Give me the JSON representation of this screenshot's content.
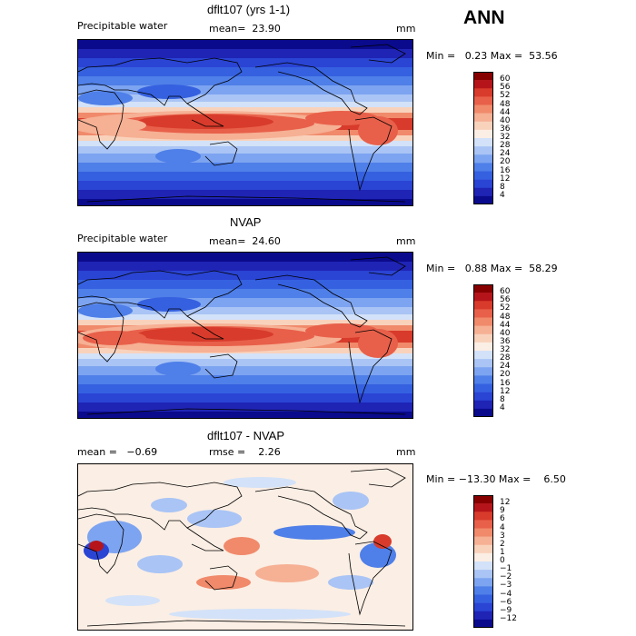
{
  "season": "ANN",
  "colors": {
    "land": "#000000",
    "background": "#ffffff"
  },
  "panels": [
    {
      "title": "dflt107 (yrs 1-1)",
      "left_label": "Precipitable water",
      "mid_label": "mean=  23.90",
      "units": "mm",
      "minmax": "Min =   0.23 Max =  53.56"
    },
    {
      "title": "NVAP",
      "left_label": "Precipitable water",
      "mid_label": "mean=  24.60",
      "units": "mm",
      "minmax": "Min =   0.88 Max =  58.29"
    },
    {
      "title": "dflt107 - NVAP",
      "left_label": "mean =   −0.69",
      "mid_label": "rmse =    2.26",
      "units": "mm",
      "minmax": "Min = −13.30 Max =    6.50"
    }
  ],
  "chart_data": [
    {
      "type": "heatmap",
      "title": "dflt107 (yrs 1-1)",
      "variable": "Precipitable water",
      "units": "mm",
      "mean": 23.9,
      "min": 0.23,
      "max": 53.56,
      "colorbar_levels": [
        4,
        8,
        12,
        16,
        20,
        24,
        28,
        32,
        36,
        40,
        44,
        48,
        52,
        56,
        60
      ],
      "colorbar_colors": [
        "#0a0a8c",
        "#1f24b5",
        "#2a44d4",
        "#3561e0",
        "#4f7fe8",
        "#7da4f0",
        "#a9c4f5",
        "#d3e2f8",
        "#fbeee4",
        "#f9d2bc",
        "#f6b094",
        "#f08a6b",
        "#e8604a",
        "#d83b2b",
        "#b5151a",
        "#870000"
      ]
    },
    {
      "type": "heatmap",
      "title": "NVAP",
      "variable": "Precipitable water",
      "units": "mm",
      "mean": 24.6,
      "min": 0.88,
      "max": 58.29,
      "colorbar_levels": [
        4,
        8,
        12,
        16,
        20,
        24,
        28,
        32,
        36,
        40,
        44,
        48,
        52,
        56,
        60
      ],
      "colorbar_colors": [
        "#0a0a8c",
        "#1f24b5",
        "#2a44d4",
        "#3561e0",
        "#4f7fe8",
        "#7da4f0",
        "#a9c4f5",
        "#d3e2f8",
        "#fbeee4",
        "#f9d2bc",
        "#f6b094",
        "#f08a6b",
        "#e8604a",
        "#d83b2b",
        "#b5151a",
        "#870000"
      ]
    },
    {
      "type": "heatmap",
      "title": "dflt107 - NVAP",
      "units": "mm",
      "mean": -0.69,
      "rmse": 2.26,
      "min": -13.3,
      "max": 6.5,
      "colorbar_levels": [
        -12,
        -9,
        -6,
        -4,
        -3,
        -2,
        -1,
        0,
        1,
        2,
        3,
        4,
        6,
        9,
        12
      ],
      "colorbar_colors": [
        "#0a0a8c",
        "#1f24b5",
        "#2a44d4",
        "#3561e0",
        "#4f7fe8",
        "#7da4f0",
        "#a9c4f5",
        "#d3e2f8",
        "#fbeee4",
        "#f9d2bc",
        "#f6b094",
        "#f08a6b",
        "#e8604a",
        "#d83b2b",
        "#b5151a",
        "#870000"
      ]
    }
  ]
}
